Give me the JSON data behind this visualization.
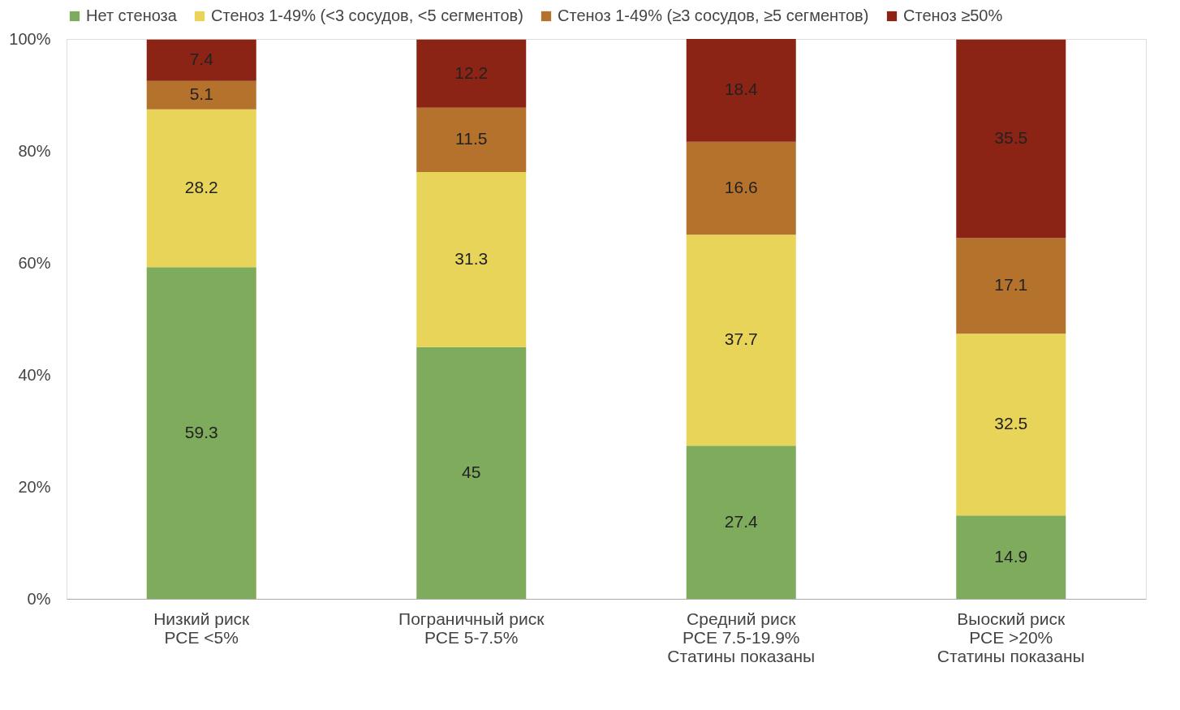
{
  "chart_data": {
    "type": "bar",
    "stacked": true,
    "data_labels": true,
    "legend": "top",
    "grid": false,
    "categories": [
      "Низкий риск\nРСЕ <5%",
      "Пограничный риск\nРСЕ 5-7.5%",
      "Средний риск\nРСЕ 7.5-19.9%\nСтатины показаны",
      "Выоский риск\nРСЕ >20%\nСтатины показаны"
    ],
    "series": [
      {
        "name": "Нет стеноза",
        "color": "#7eab5c",
        "values": [
          59.3,
          45,
          27.4,
          14.9
        ]
      },
      {
        "name": "Стеноз 1-49% (<3 сосудов, <5 сегментов)",
        "color": "#e9d45a",
        "values": [
          28.2,
          31.3,
          37.7,
          32.5
        ]
      },
      {
        "name": "Стеноз 1-49% (≥3 сосудов, ≥5 сегментов)",
        "color": "#b5722c",
        "values": [
          5.1,
          11.5,
          16.6,
          17.1
        ]
      },
      {
        "name": "Стеноз ≥50%",
        "color": "#8b2415",
        "values": [
          7.4,
          12.2,
          18.4,
          35.5
        ]
      }
    ],
    "ylim": [
      0,
      100.1
    ],
    "yticks": [
      {
        "value": 0,
        "label": "0%"
      },
      {
        "value": 20,
        "label": "20%"
      },
      {
        "value": 40,
        "label": "40%"
      },
      {
        "value": 60,
        "label": "60%"
      },
      {
        "value": 80,
        "label": "80%"
      },
      {
        "value": 100,
        "label": "100%"
      }
    ]
  }
}
